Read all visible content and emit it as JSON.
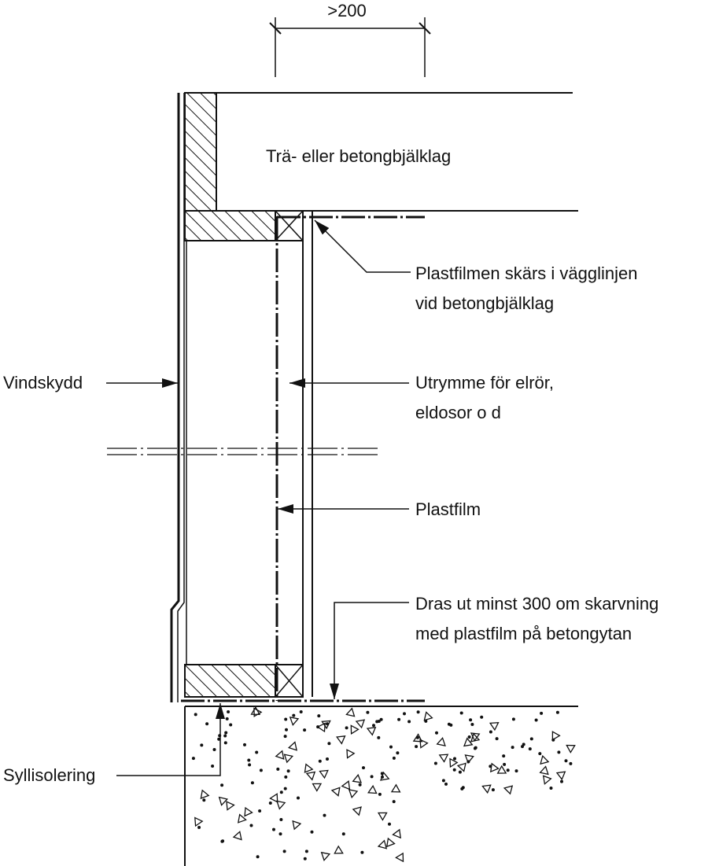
{
  "colors": {
    "ink": "#111111",
    "paper": "#ffffff"
  },
  "dimension": {
    "text": ">200"
  },
  "floor": {
    "label": "Trä- eller betongbjälklag"
  },
  "labels": {
    "cut_line1": "Plastfilmen skärs i vägglinjen",
    "cut_line2": "vid betongbjälklag",
    "wind": "Vindskydd",
    "utility_line1": "Utrymme för elrör,",
    "utility_line2": "eldosor o d",
    "film": "Plastfilm",
    "extend_line1": "Dras ut minst 300 om skarvning",
    "extend_line2": "med plastfilm på betongytan",
    "sill": "Syllisolering"
  }
}
